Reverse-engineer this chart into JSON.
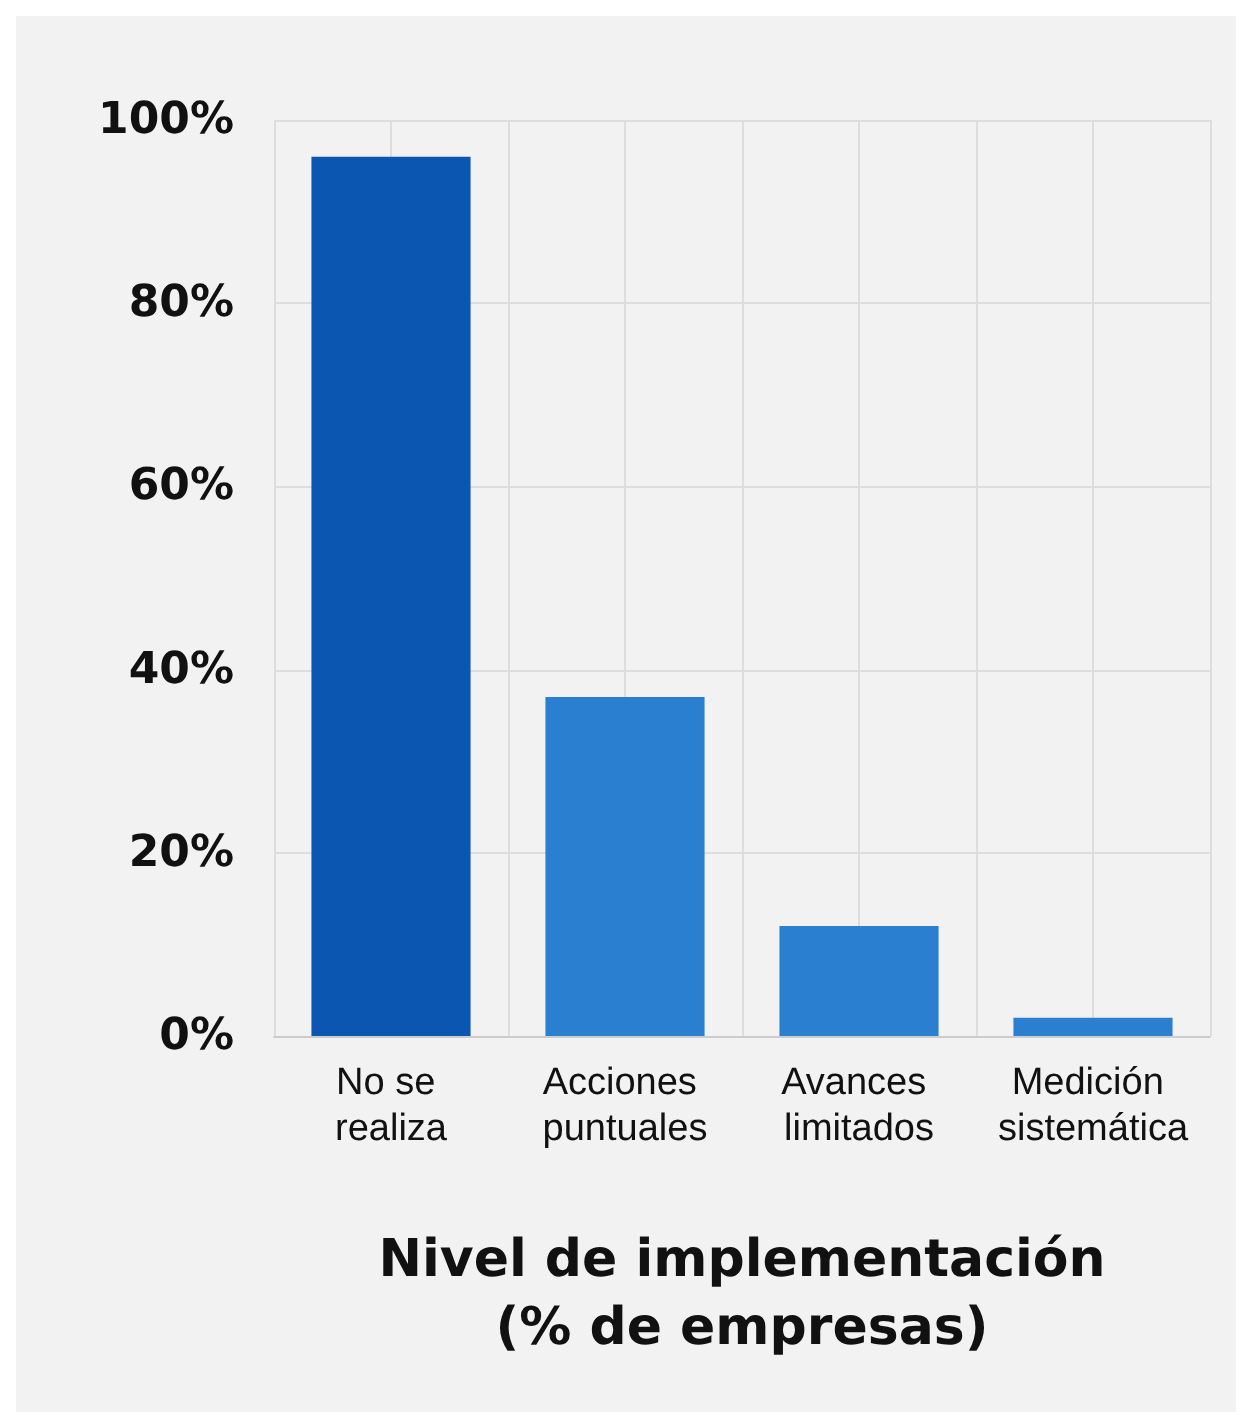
{
  "chart_data": {
    "type": "bar",
    "xlabel": "Nivel de implementación\n(% de empresas)",
    "categories": [
      "No se realiza",
      "Acciones puntuales",
      "Avances limitados",
      "Medición sistemática"
    ],
    "values": [
      96,
      37,
      12,
      2
    ],
    "colors": [
      "#0a56b0",
      "#2a7fd0",
      "#2a7fd0",
      "#2a7fd0"
    ],
    "ylim": [
      0,
      100
    ],
    "yticks": [
      {
        "value": 0,
        "label": "0%"
      },
      {
        "value": 20,
        "label": "20%"
      },
      {
        "value": 40,
        "label": "40%"
      },
      {
        "value": 60,
        "label": "60%"
      },
      {
        "value": 80,
        "label": "80%"
      },
      {
        "value": 100,
        "label": "100%"
      }
    ],
    "grid": true
  }
}
